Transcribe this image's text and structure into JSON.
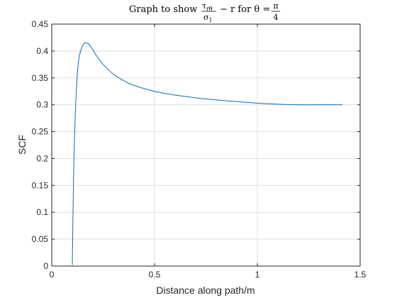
{
  "chart_data": {
    "type": "line",
    "title": {
      "prefix": "Graph to show",
      "frac1_num": "τ",
      "frac1_num_sub": "rθ",
      "frac1_den": "σ",
      "frac1_den_sub": "1",
      "middle": "− r for θ =",
      "frac2_num": "π",
      "frac2_den": "4"
    },
    "xlabel": "Distance along path/m",
    "ylabel": "SCF",
    "xlim": [
      0,
      1.5
    ],
    "ylim": [
      0,
      0.45
    ],
    "xticks": [
      0,
      0.5,
      1,
      1.5
    ],
    "xtick_labels": [
      "0",
      "0.5",
      "1",
      "1.5"
    ],
    "yticks": [
      0,
      0.05,
      0.1,
      0.15,
      0.2,
      0.25,
      0.3,
      0.35,
      0.4,
      0.45
    ],
    "ytick_labels": [
      "0",
      "0.05",
      "0.1",
      "0.15",
      "0.2",
      "0.25",
      "0.3",
      "0.35",
      "0.4",
      "0.45"
    ],
    "grid": true,
    "series": [
      {
        "color": "#0072BD",
        "x": [
          0.1,
          0.105,
          0.11,
          0.12,
          0.13,
          0.14,
          0.15,
          0.16,
          0.17,
          0.18,
          0.19,
          0.2,
          0.22,
          0.25,
          0.3,
          0.35,
          0.4,
          0.5,
          0.6,
          0.7,
          0.8,
          0.9,
          1.0,
          1.1,
          1.2,
          1.3,
          1.414
        ],
        "y": [
          0.002,
          0.14,
          0.23,
          0.33,
          0.38,
          0.4,
          0.41,
          0.415,
          0.415,
          0.413,
          0.408,
          0.402,
          0.39,
          0.375,
          0.357,
          0.345,
          0.336,
          0.325,
          0.318,
          0.313,
          0.309,
          0.306,
          0.303,
          0.301,
          0.3,
          0.3,
          0.3
        ]
      }
    ]
  }
}
